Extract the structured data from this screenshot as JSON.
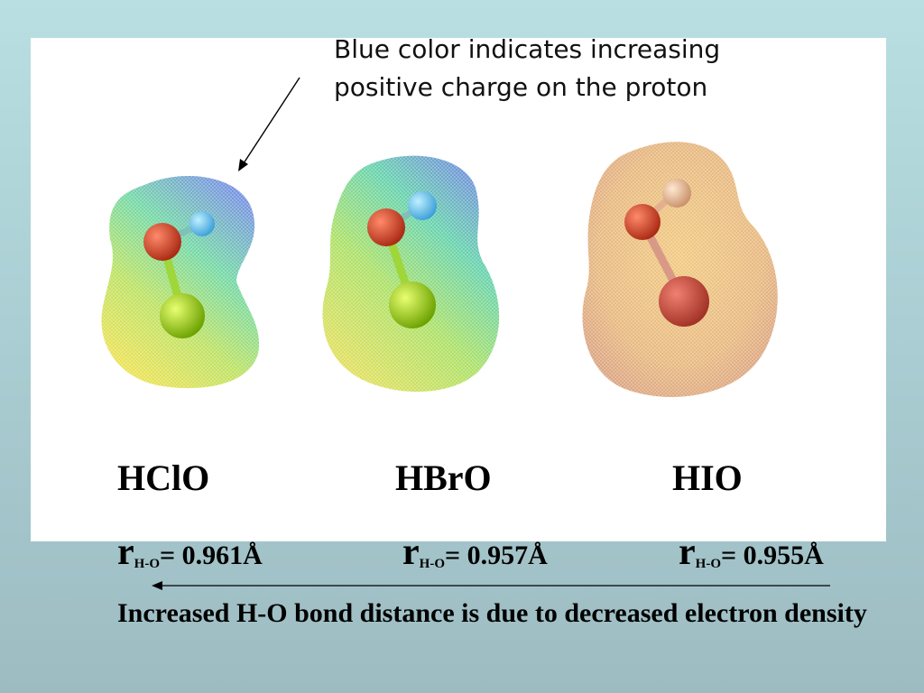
{
  "annotation": {
    "line1": "Blue color indicates increasing",
    "line2": "positive charge on the proton"
  },
  "molecules": [
    {
      "name": "HClO",
      "r_label": "r",
      "r_sub": "H-O",
      "distance": "= 0.961Å"
    },
    {
      "name": "HBrO",
      "r_label": "r",
      "r_sub": "H-O",
      "distance": "= 0.957Å"
    },
    {
      "name": "HIO",
      "r_label": "r",
      "r_sub": "H-O",
      "distance": "= 0.955Å"
    }
  ],
  "caption": "Increased H-O bond distance is due to decreased electron density",
  "colors": {
    "background": "#aad0d5",
    "panel": "#ffffff",
    "oxygen": "#c8341c",
    "hydrogen_hclo": "#5ab8e8",
    "chlorine": "#9ed000",
    "bromine": "#8fc800",
    "iodine": "#c04030",
    "hydrogen_hio": "#e8b890"
  }
}
